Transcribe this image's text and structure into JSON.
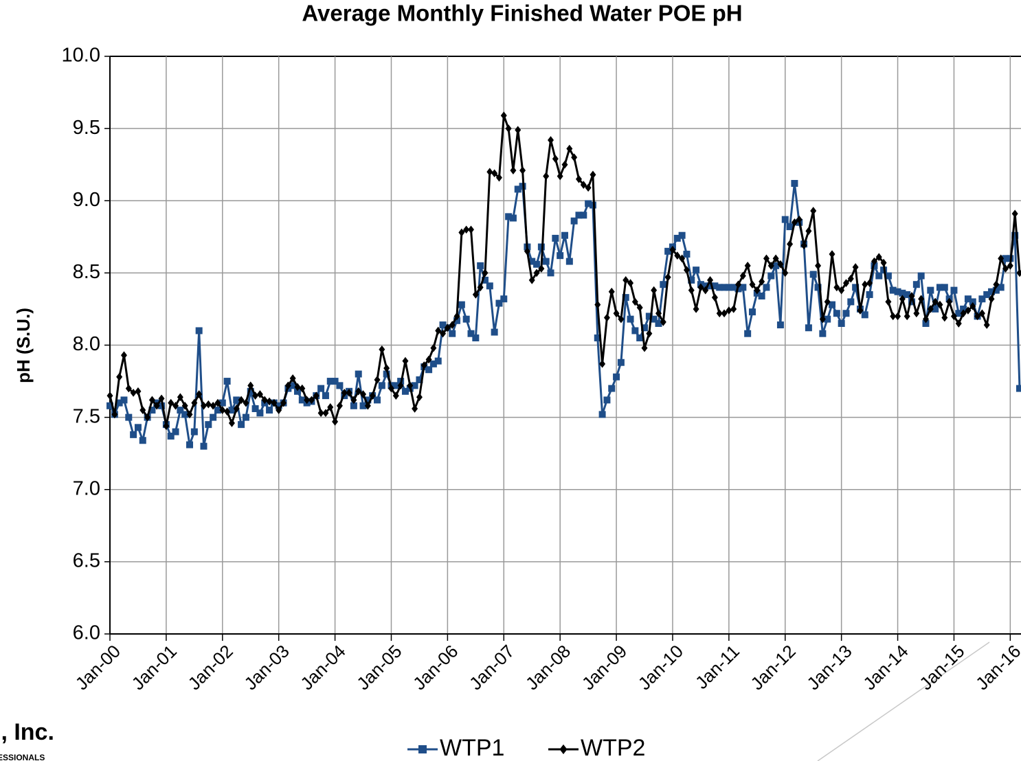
{
  "chart_data": {
    "type": "line",
    "title": "Average Monthly Finished Water POE pH",
    "y_label": "pH (S.U.)",
    "x": [
      "2000-01",
      "2000-02",
      "2000-03",
      "2000-04",
      "2000-05",
      "2000-06",
      "2000-07",
      "2000-08",
      "2000-09",
      "2000-10",
      "2000-11",
      "2000-12",
      "2001-01",
      "2001-02",
      "2001-03",
      "2001-04",
      "2001-05",
      "2001-06",
      "2001-07",
      "2001-08",
      "2001-09",
      "2001-10",
      "2001-11",
      "2001-12",
      "2002-01",
      "2002-02",
      "2002-03",
      "2002-04",
      "2002-05",
      "2002-06",
      "2002-07",
      "2002-08",
      "2002-09",
      "2002-10",
      "2002-11",
      "2002-12",
      "2003-01",
      "2003-02",
      "2003-03",
      "2003-04",
      "2003-05",
      "2003-06",
      "2003-07",
      "2003-08",
      "2003-09",
      "2003-10",
      "2003-11",
      "2003-12",
      "2004-01",
      "2004-02",
      "2004-03",
      "2004-04",
      "2004-05",
      "2004-06",
      "2004-07",
      "2004-08",
      "2004-09",
      "2004-10",
      "2004-11",
      "2004-12",
      "2005-01",
      "2005-02",
      "2005-03",
      "2005-04",
      "2005-05",
      "2005-06",
      "2005-07",
      "2005-08",
      "2005-09",
      "2005-10",
      "2005-11",
      "2005-12",
      "2006-01",
      "2006-02",
      "2006-03",
      "2006-04",
      "2006-05",
      "2006-06",
      "2006-07",
      "2006-08",
      "2006-09",
      "2006-10",
      "2006-11",
      "2006-12",
      "2007-01",
      "2007-02",
      "2007-03",
      "2007-04",
      "2007-05",
      "2007-06",
      "2007-07",
      "2007-08",
      "2007-09",
      "2007-10",
      "2007-11",
      "2007-12",
      "2008-01",
      "2008-02",
      "2008-03",
      "2008-04",
      "2008-05",
      "2008-06",
      "2008-07",
      "2008-08",
      "2008-09",
      "2008-10",
      "2008-11",
      "2008-12",
      "2009-01",
      "2009-02",
      "2009-03",
      "2009-04",
      "2009-05",
      "2009-06",
      "2009-07",
      "2009-08",
      "2009-09",
      "2009-10",
      "2009-11",
      "2009-12",
      "2010-01",
      "2010-02",
      "2010-03",
      "2010-04",
      "2010-05",
      "2010-06",
      "2010-07",
      "2010-08",
      "2010-09",
      "2010-10",
      "2010-11",
      "2010-12",
      "2011-01",
      "2011-02",
      "2011-03",
      "2011-04",
      "2011-05",
      "2011-06",
      "2011-07",
      "2011-08",
      "2011-09",
      "2011-10",
      "2011-11",
      "2011-12",
      "2012-01",
      "2012-02",
      "2012-03",
      "2012-04",
      "2012-05",
      "2012-06",
      "2012-07",
      "2012-08",
      "2012-09",
      "2012-10",
      "2012-11",
      "2012-12",
      "2013-01",
      "2013-02",
      "2013-03",
      "2013-04",
      "2013-05",
      "2013-06",
      "2013-07",
      "2013-08",
      "2013-09",
      "2013-10",
      "2013-11",
      "2013-12",
      "2014-01",
      "2014-02",
      "2014-03",
      "2014-04",
      "2014-05",
      "2014-06",
      "2014-07",
      "2014-08",
      "2014-09",
      "2014-10",
      "2014-11",
      "2014-12",
      "2015-01",
      "2015-02",
      "2015-03",
      "2015-04",
      "2015-05",
      "2015-06",
      "2015-07",
      "2015-08",
      "2015-09",
      "2015-10",
      "2015-11",
      "2015-12",
      "2016-01",
      "2016-02",
      "2016-03"
    ],
    "series": [
      {
        "name": "WTP1",
        "color": "#1f4e89",
        "marker": "square",
        "values": [
          7.58,
          7.52,
          7.6,
          7.62,
          7.5,
          7.38,
          7.43,
          7.34,
          7.5,
          7.55,
          7.6,
          7.58,
          7.45,
          7.37,
          7.4,
          7.55,
          7.52,
          7.31,
          7.4,
          8.1,
          7.3,
          7.45,
          7.5,
          7.55,
          7.6,
          7.75,
          7.55,
          7.62,
          7.45,
          7.5,
          7.68,
          7.56,
          7.53,
          7.6,
          7.55,
          7.6,
          7.58,
          7.6,
          7.7,
          7.72,
          7.68,
          7.62,
          7.6,
          7.61,
          7.65,
          7.7,
          7.65,
          7.75,
          7.75,
          7.72,
          7.65,
          7.68,
          7.58,
          7.8,
          7.58,
          7.62,
          7.65,
          7.62,
          7.72,
          7.8,
          7.72,
          7.72,
          7.75,
          7.68,
          7.7,
          7.72,
          7.76,
          7.85,
          7.83,
          7.87,
          7.89,
          8.14,
          8.12,
          8.08,
          8.17,
          8.28,
          8.18,
          8.08,
          8.05,
          8.55,
          8.45,
          8.41,
          8.09,
          8.29,
          8.32,
          8.89,
          8.88,
          9.08,
          9.1,
          8.68,
          8.58,
          8.56,
          8.68,
          8.58,
          8.5,
          8.74,
          8.62,
          8.76,
          8.58,
          8.86,
          8.9,
          8.9,
          8.98,
          8.97,
          8.05,
          7.52,
          7.62,
          7.7,
          7.78,
          7.88,
          8.33,
          8.18,
          8.1,
          8.05,
          8.12,
          8.2,
          8.18,
          8.15,
          8.42,
          8.65,
          8.68,
          8.74,
          8.76,
          8.63,
          8.45,
          8.52,
          8.42,
          8.41,
          8.41,
          8.41,
          8.4,
          8.4,
          8.4,
          8.4,
          8.39,
          8.4,
          8.08,
          8.23,
          8.36,
          8.34,
          8.4,
          8.48,
          8.55,
          8.14,
          8.87,
          8.82,
          9.12,
          8.85,
          8.7,
          8.12,
          8.49,
          8.4,
          8.08,
          8.18,
          8.28,
          8.22,
          8.15,
          8.22,
          8.3,
          8.4,
          8.25,
          8.21,
          8.35,
          8.55,
          8.48,
          8.52,
          8.48,
          8.38,
          8.37,
          8.36,
          8.35,
          8.3,
          8.42,
          8.48,
          8.15,
          8.38,
          8.25,
          8.4,
          8.4,
          8.32,
          8.38,
          8.22,
          8.25,
          8.32,
          8.3,
          8.2,
          8.32,
          8.35,
          8.37,
          8.38,
          8.4,
          8.6,
          8.6,
          8.76,
          7.7
        ]
      },
      {
        "name": "WTP2",
        "color": "#000000",
        "marker": "diamond",
        "values": [
          7.65,
          7.52,
          7.78,
          7.93,
          7.7,
          7.67,
          7.68,
          7.55,
          7.5,
          7.62,
          7.58,
          7.63,
          7.44,
          7.6,
          7.58,
          7.64,
          7.58,
          7.52,
          7.6,
          7.66,
          7.58,
          7.59,
          7.58,
          7.6,
          7.55,
          7.54,
          7.46,
          7.56,
          7.62,
          7.6,
          7.72,
          7.65,
          7.66,
          7.62,
          7.61,
          7.6,
          7.55,
          7.6,
          7.72,
          7.77,
          7.71,
          7.7,
          7.62,
          7.62,
          7.65,
          7.53,
          7.53,
          7.57,
          7.47,
          7.58,
          7.67,
          7.67,
          7.62,
          7.68,
          7.66,
          7.58,
          7.65,
          7.76,
          7.97,
          7.84,
          7.7,
          7.65,
          7.72,
          7.89,
          7.72,
          7.56,
          7.64,
          7.86,
          7.9,
          7.98,
          8.1,
          8.08,
          8.12,
          8.14,
          8.2,
          8.78,
          8.8,
          8.8,
          8.35,
          8.4,
          8.5,
          9.2,
          9.19,
          9.16,
          9.59,
          9.5,
          9.21,
          9.49,
          9.21,
          8.65,
          8.45,
          8.5,
          8.53,
          9.17,
          9.42,
          9.29,
          9.17,
          9.25,
          9.36,
          9.3,
          9.15,
          9.11,
          9.09,
          9.18,
          8.28,
          7.87,
          8.19,
          8.37,
          8.22,
          8.18,
          8.45,
          8.43,
          8.3,
          8.26,
          7.98,
          8.08,
          8.38,
          8.22,
          8.16,
          8.47,
          8.66,
          8.62,
          8.6,
          8.52,
          8.38,
          8.25,
          8.4,
          8.38,
          8.45,
          8.33,
          8.22,
          8.22,
          8.24,
          8.25,
          8.42,
          8.48,
          8.55,
          8.42,
          8.38,
          8.44,
          8.6,
          8.55,
          8.6,
          8.56,
          8.5,
          8.7,
          8.85,
          8.87,
          8.69,
          8.79,
          8.93,
          8.55,
          8.18,
          8.3,
          8.63,
          8.4,
          8.38,
          8.43,
          8.46,
          8.54,
          8.24,
          8.42,
          8.43,
          8.58,
          8.61,
          8.57,
          8.3,
          8.2,
          8.2,
          8.32,
          8.2,
          8.34,
          8.22,
          8.32,
          8.18,
          8.25,
          8.3,
          8.28,
          8.19,
          8.3,
          8.2,
          8.15,
          8.22,
          8.24,
          8.27,
          8.2,
          8.22,
          8.14,
          8.32,
          8.42,
          8.6,
          8.53,
          8.55,
          8.91,
          8.5
        ]
      }
    ],
    "xlim": [
      "2000-01",
      "2016-03"
    ],
    "xticks": [
      {
        "value": "2000-01",
        "label": "Jan-00"
      },
      {
        "value": "2001-01",
        "label": "Jan-01"
      },
      {
        "value": "2002-01",
        "label": "Jan-02"
      },
      {
        "value": "2003-01",
        "label": "Jan-03"
      },
      {
        "value": "2004-01",
        "label": "Jan-04"
      },
      {
        "value": "2005-01",
        "label": "Jan-05"
      },
      {
        "value": "2006-01",
        "label": "Jan-06"
      },
      {
        "value": "2007-01",
        "label": "Jan-07"
      },
      {
        "value": "2008-01",
        "label": "Jan-08"
      },
      {
        "value": "2009-01",
        "label": "Jan-09"
      },
      {
        "value": "2010-01",
        "label": "Jan-10"
      },
      {
        "value": "2011-01",
        "label": "Jan-11"
      },
      {
        "value": "2012-01",
        "label": "Jan-12"
      },
      {
        "value": "2013-01",
        "label": "Jan-13"
      },
      {
        "value": "2014-01",
        "label": "Jan-14"
      },
      {
        "value": "2015-01",
        "label": "Jan-15"
      },
      {
        "value": "2016-01",
        "label": "Jan-16"
      }
    ],
    "ylim": [
      6,
      10
    ],
    "yticks": [
      {
        "value": 6,
        "label": "6.0"
      },
      {
        "value": 6.5,
        "label": "6.5"
      },
      {
        "value": 7,
        "label": "7.0"
      },
      {
        "value": 7.5,
        "label": "7.5"
      },
      {
        "value": 8,
        "label": "8.0"
      },
      {
        "value": 8.5,
        "label": "8.5"
      },
      {
        "value": 9,
        "label": "9.0"
      },
      {
        "value": 9.5,
        "label": "9.5"
      },
      {
        "value": 10,
        "label": "10.0"
      }
    ],
    "grid": true,
    "legend": "bottom"
  },
  "footer": {
    "company": "l, Inc.",
    "tagline": "ESSIONALS"
  }
}
